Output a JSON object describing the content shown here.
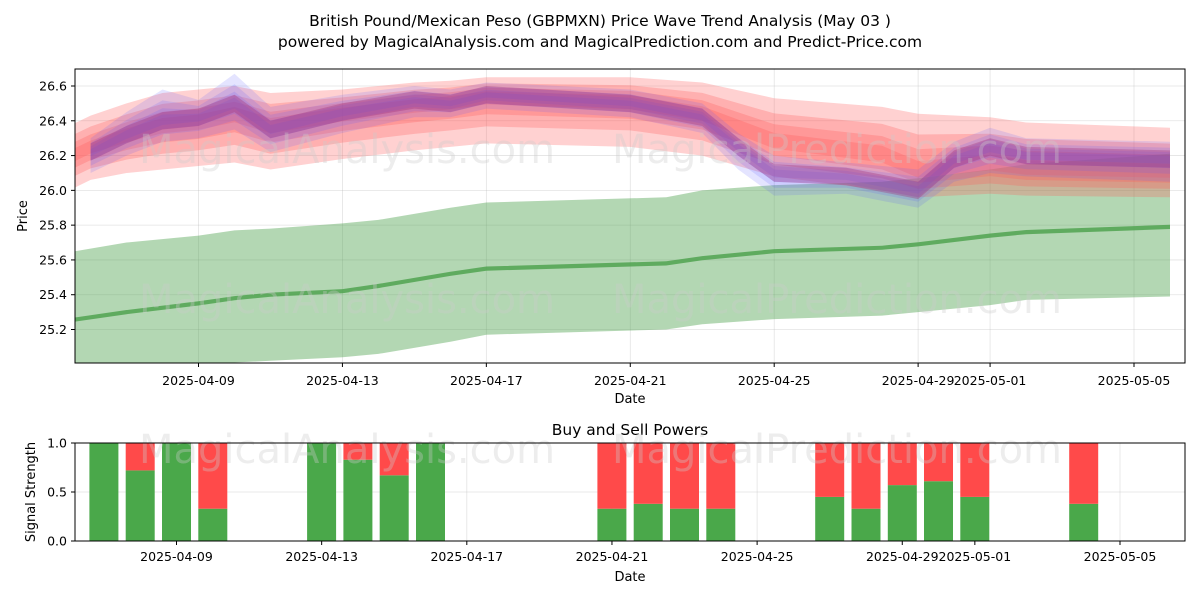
{
  "title": "British Pound/Mexican Peso (GBPMXN) Price Wave Trend Analysis (May 03 )",
  "subtitle": "powered by MagicalAnalysis.com and MagicalPrediction.com and Predict-Price.com",
  "watermarks": [
    "MagicalAnalysis.com",
    "MagicalPrediction.com"
  ],
  "colors": {
    "red_band": "#ff5a5a",
    "blue_band": "#5a5aff",
    "green_band": "#4aa04a",
    "buy": "#4aa84a",
    "sell": "#ff4a4a"
  },
  "chart_data": [
    {
      "type": "line",
      "title": "",
      "xlabel": "Date",
      "ylabel": "Price",
      "ylim": [
        25.0,
        26.7
      ],
      "xlim": [
        "2025-04-05",
        "2025-05-06"
      ],
      "xticks": [
        "2025-04-09",
        "2025-04-13",
        "2025-04-17",
        "2025-04-21",
        "2025-04-25",
        "2025-04-29",
        "2025-05-01",
        "2025-05-05"
      ],
      "yticks": [
        "25.2",
        "25.4",
        "25.6",
        "25.8",
        "26.0",
        "26.2",
        "26.4",
        "26.6"
      ],
      "grid": true,
      "series": [
        {
          "color": "green",
          "dates": [
            "2025-04-05",
            "2025-04-07",
            "2025-04-09",
            "2025-04-10",
            "2025-04-11",
            "2025-04-13",
            "2025-04-14",
            "2025-04-16",
            "2025-04-17",
            "2025-04-22",
            "2025-04-23",
            "2025-04-25",
            "2025-04-28",
            "2025-04-29",
            "2025-05-01",
            "2025-05-02",
            "2025-05-06"
          ],
          "center": [
            25.24,
            25.3,
            25.35,
            25.38,
            25.4,
            25.42,
            25.45,
            25.52,
            25.55,
            25.58,
            25.61,
            25.65,
            25.67,
            25.69,
            25.74,
            25.76,
            25.79
          ],
          "upper": [
            25.63,
            25.7,
            25.74,
            25.77,
            25.78,
            25.81,
            25.83,
            25.9,
            25.93,
            25.96,
            26.0,
            26.03,
            26.05,
            26.07,
            26.12,
            26.15,
            26.21
          ],
          "lower": [
            24.85,
            24.95,
            25.0,
            25.01,
            25.02,
            25.04,
            25.06,
            25.13,
            25.17,
            25.2,
            25.23,
            25.26,
            25.28,
            25.3,
            25.34,
            25.37,
            25.39
          ]
        },
        {
          "color": "red",
          "dates": [
            "2025-04-05",
            "2025-04-06",
            "2025-04-07",
            "2025-04-08",
            "2025-04-09",
            "2025-04-10",
            "2025-04-11",
            "2025-04-13",
            "2025-04-15",
            "2025-04-16",
            "2025-04-17",
            "2025-04-21",
            "2025-04-23",
            "2025-04-25",
            "2025-04-28",
            "2025-04-29",
            "2025-05-01",
            "2025-05-02",
            "2025-05-06"
          ],
          "center": [
            26.15,
            26.25,
            26.32,
            26.38,
            26.4,
            26.45,
            26.38,
            26.45,
            26.5,
            26.52,
            26.55,
            26.52,
            26.45,
            26.28,
            26.2,
            26.1,
            26.15,
            26.12,
            26.1
          ],
          "upper": [
            26.33,
            26.43,
            26.5,
            26.56,
            26.58,
            26.6,
            26.56,
            26.58,
            26.62,
            26.63,
            26.65,
            26.65,
            26.62,
            26.53,
            26.48,
            26.44,
            26.42,
            26.39,
            26.36
          ],
          "lower": [
            25.96,
            26.06,
            26.1,
            26.12,
            26.14,
            26.16,
            26.12,
            26.18,
            26.23,
            26.25,
            26.27,
            26.25,
            26.2,
            26.08,
            26.0,
            25.96,
            25.98,
            25.97,
            25.96
          ]
        },
        {
          "color": "blue",
          "dates": [
            "2025-04-06",
            "2025-04-07",
            "2025-04-08",
            "2025-04-09",
            "2025-04-10",
            "2025-04-11",
            "2025-04-13",
            "2025-04-15",
            "2025-04-16",
            "2025-04-17",
            "2025-04-21",
            "2025-04-23",
            "2025-04-24",
            "2025-04-25",
            "2025-04-27",
            "2025-04-29",
            "2025-04-30",
            "2025-05-01",
            "2025-05-02",
            "2025-05-06"
          ],
          "center": [
            26.22,
            26.32,
            26.4,
            26.42,
            26.5,
            26.35,
            26.45,
            26.52,
            26.5,
            26.55,
            26.5,
            26.42,
            26.25,
            26.1,
            26.08,
            26.0,
            26.18,
            26.25,
            26.2,
            26.18
          ],
          "upper": [
            26.3,
            26.45,
            26.58,
            26.52,
            26.67,
            26.48,
            26.55,
            26.6,
            26.58,
            26.62,
            26.58,
            26.5,
            26.33,
            26.2,
            26.16,
            26.12,
            26.28,
            26.36,
            26.3,
            26.28
          ],
          "lower": [
            26.1,
            26.2,
            26.28,
            26.3,
            26.35,
            26.22,
            26.33,
            26.42,
            26.42,
            26.47,
            26.42,
            26.33,
            26.12,
            25.97,
            25.98,
            25.9,
            26.05,
            26.1,
            26.08,
            26.05
          ]
        }
      ]
    },
    {
      "type": "bar",
      "title": "Buy and Sell Powers",
      "xlabel": "Date",
      "ylabel": "Signal Strength",
      "ylim": [
        0,
        1.0
      ],
      "xticks": [
        "2025-04-09",
        "2025-04-13",
        "2025-04-17",
        "2025-04-21",
        "2025-04-25",
        "2025-04-29",
        "2025-05-01",
        "2025-05-05"
      ],
      "yticks": [
        "0.0",
        "0.5",
        "1.0"
      ],
      "grid": true,
      "categories": [
        "2025-04-07",
        "2025-04-08",
        "2025-04-09",
        "2025-04-10",
        "2025-04-13",
        "2025-04-14",
        "2025-04-15",
        "2025-04-16",
        "2025-04-21",
        "2025-04-22",
        "2025-04-23",
        "2025-04-24",
        "2025-04-27",
        "2025-04-28",
        "2025-04-29",
        "2025-04-30",
        "2025-05-01",
        "2025-05-04"
      ],
      "series": [
        {
          "name": "Buy",
          "values": [
            1.0,
            0.72,
            1.0,
            0.33,
            1.0,
            0.83,
            0.67,
            1.0,
            0.33,
            0.38,
            0.33,
            0.33,
            0.45,
            0.33,
            0.57,
            0.61,
            0.45,
            0.38
          ]
        },
        {
          "name": "Sell",
          "values": [
            0.0,
            0.28,
            0.0,
            0.67,
            0.0,
            0.17,
            0.33,
            0.0,
            0.67,
            0.62,
            0.67,
            0.67,
            0.55,
            0.67,
            0.43,
            0.39,
            0.55,
            0.62
          ]
        }
      ]
    }
  ]
}
